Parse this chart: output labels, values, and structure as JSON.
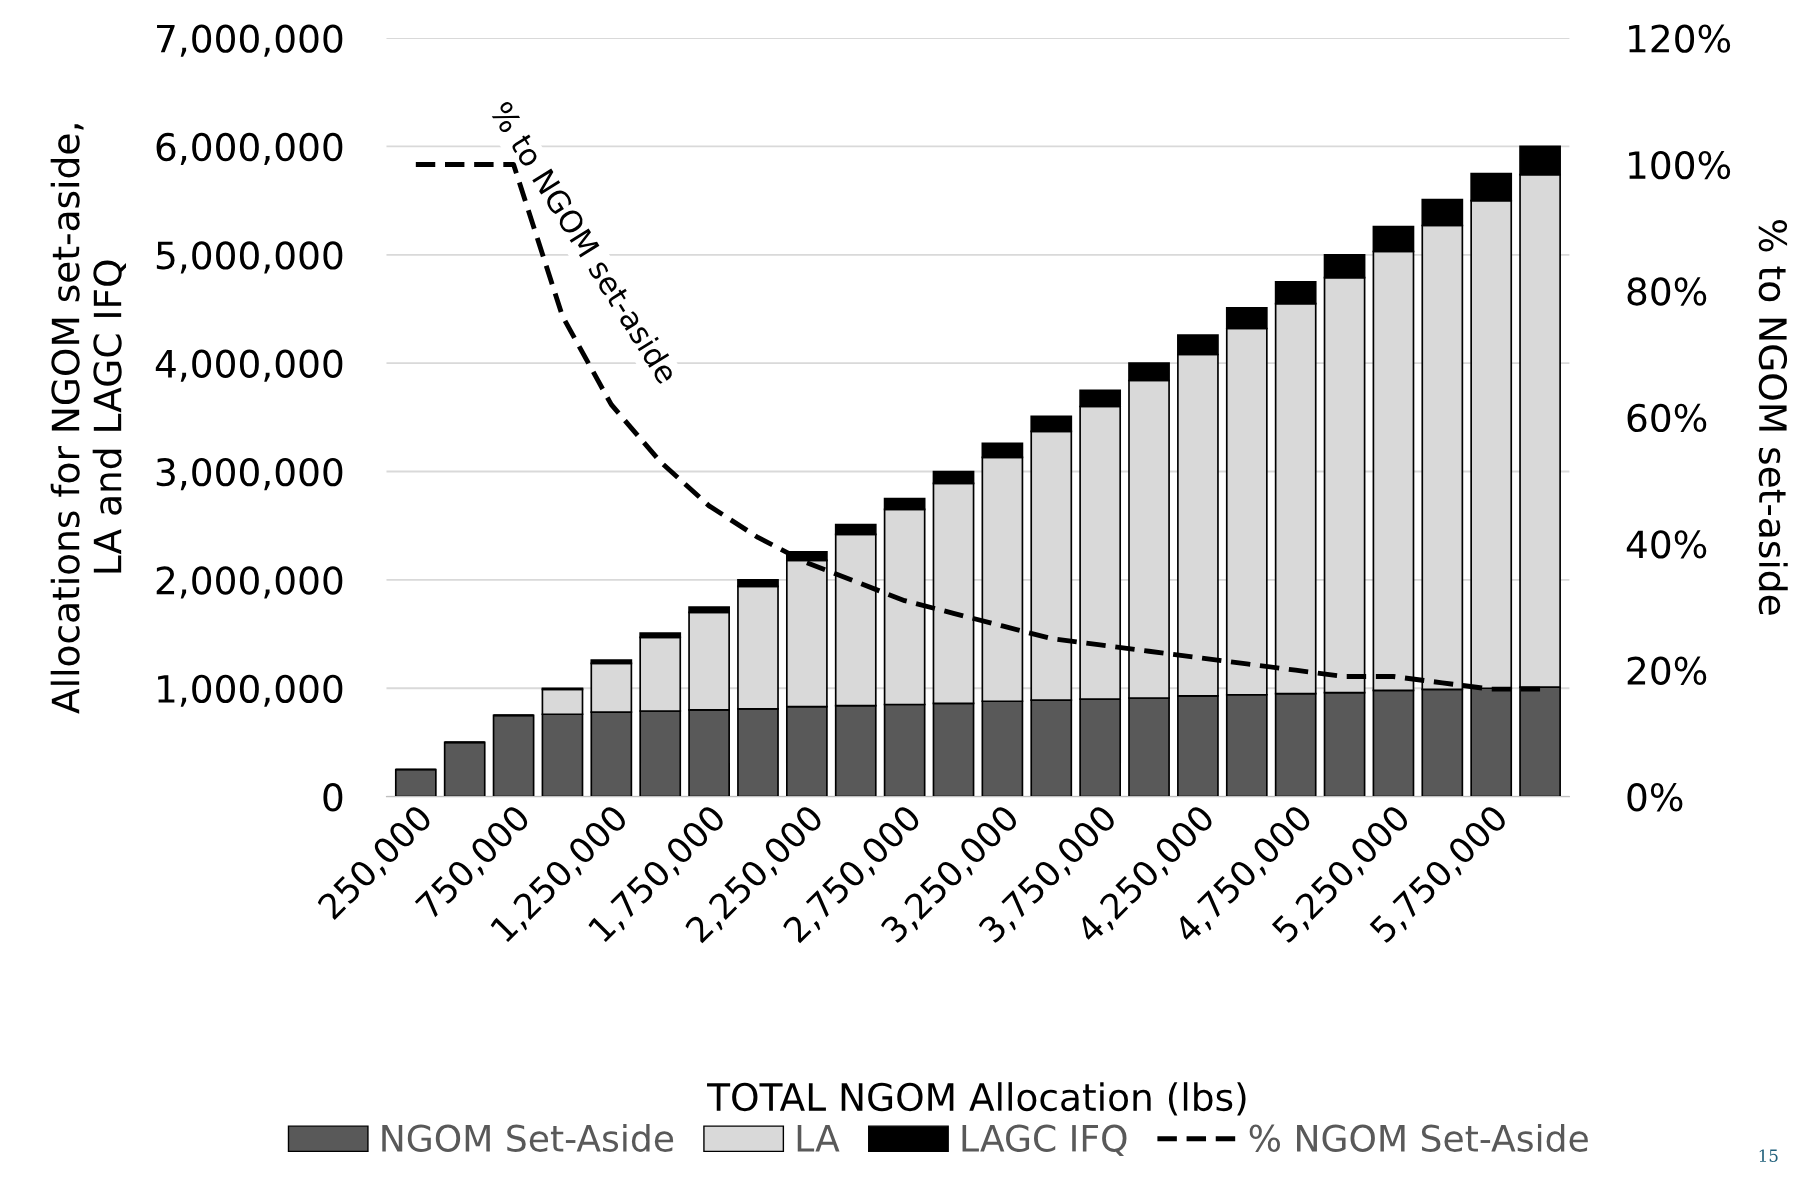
{
  "chart_data": {
    "type": "bar",
    "stacked": true,
    "xlabel": "TOTAL NGOM Allocation (lbs)",
    "ylabel": "Allocations for NGOM set-aside,\nLA and LAGC IFQ",
    "y2label": "% to NGOM set-aside",
    "categories": [
      "250,000",
      null,
      "750,000",
      null,
      "1,250,000",
      null,
      "1,750,000",
      null,
      "2,250,000",
      null,
      "2,750,000",
      null,
      "3,250,000",
      null,
      "3,750,000",
      null,
      "4,250,000",
      null,
      "4,750,000",
      null,
      "5,250,000",
      null,
      "5,750,000",
      null
    ],
    "series": [
      {
        "name": "NGOM Set-Aside",
        "color": "#595959",
        "values": [
          250000,
          500000,
          750000,
          760000,
          780000,
          790000,
          800000,
          810000,
          830000,
          840000,
          850000,
          860000,
          880000,
          890000,
          900000,
          910000,
          930000,
          940000,
          950000,
          960000,
          980000,
          990000,
          1000000,
          1010000
        ]
      },
      {
        "name": "LA",
        "color": "#d9d9d9",
        "values": [
          0,
          0,
          0,
          230000,
          450000,
          680000,
          900000,
          1130000,
          1350000,
          1580000,
          1800000,
          2030000,
          2250000,
          2480000,
          2700000,
          2930000,
          3150000,
          3380000,
          3600000,
          3830000,
          4050000,
          4280000,
          4500000,
          4730000
        ]
      },
      {
        "name": "LAGC IFQ",
        "color": "#000000",
        "values": [
          0,
          0,
          0,
          10000,
          30000,
          40000,
          50000,
          60000,
          80000,
          90000,
          100000,
          110000,
          130000,
          140000,
          150000,
          160000,
          180000,
          190000,
          200000,
          210000,
          230000,
          240000,
          250000,
          260000
        ]
      },
      {
        "name": "% NGOM Set-Aside",
        "type": "line",
        "axis": "y2",
        "color": "#000000",
        "line_style": "dashed",
        "values": [
          100,
          100,
          100,
          76,
          62,
          53,
          46,
          41,
          37,
          34,
          31,
          29,
          27,
          25,
          24,
          23,
          22,
          21,
          20,
          19,
          19,
          18,
          17,
          17
        ]
      }
    ],
    "ylim": [
      0,
      7000000
    ],
    "yticks": [
      {
        "value": 0,
        "label": "0"
      },
      {
        "value": 1000000,
        "label": "1,000,000"
      },
      {
        "value": 2000000,
        "label": "2,000,000"
      },
      {
        "value": 3000000,
        "label": "3,000,000"
      },
      {
        "value": 4000000,
        "label": "4,000,000"
      },
      {
        "value": 5000000,
        "label": "5,000,000"
      },
      {
        "value": 6000000,
        "label": "6,000,000"
      },
      {
        "value": 7000000,
        "label": "7,000,000"
      }
    ],
    "y2lim": [
      0,
      120
    ],
    "y2ticks": [
      {
        "value": 0,
        "label": "0%"
      },
      {
        "value": 20,
        "label": "20%"
      },
      {
        "value": 40,
        "label": "40%"
      },
      {
        "value": 60,
        "label": "60%"
      },
      {
        "value": 80,
        "label": "80%"
      },
      {
        "value": 100,
        "label": "100%"
      },
      {
        "value": 120,
        "label": "120%"
      }
    ],
    "grid": "y",
    "legend": "bottom",
    "annotations": [
      "% to NGOM set-aside",
      "15"
    ]
  }
}
